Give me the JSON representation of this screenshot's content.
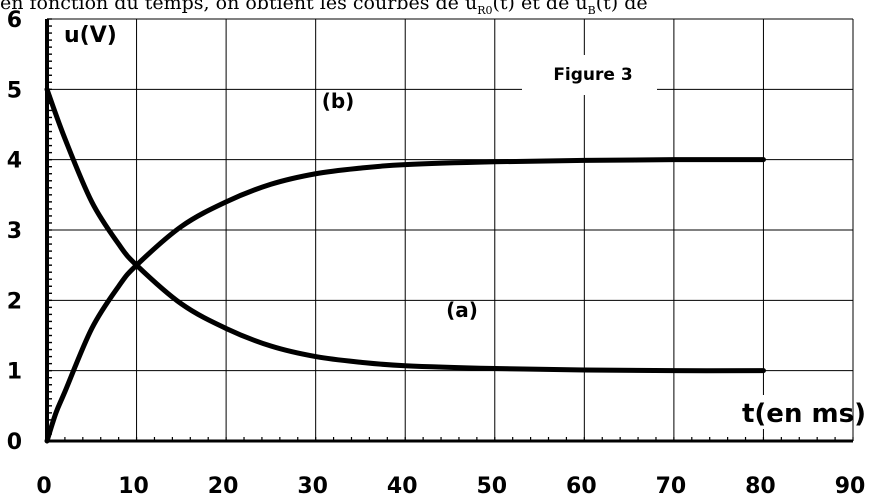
{
  "header_text": {
    "prefix": "en fonction du temps, on obtient les courbes de u",
    "sub1": "R0",
    "mid": "(t) et de u",
    "sub2": "B",
    "suffix": "(t) de"
  },
  "chart_data": {
    "type": "line",
    "title": "Figure 3",
    "xlabel": "t(en ms)",
    "ylabel": "u(V)",
    "xlim": [
      0,
      90
    ],
    "ylim": [
      0,
      6
    ],
    "xticks": [
      0,
      10,
      20,
      30,
      40,
      50,
      60,
      70,
      80,
      90
    ],
    "yticks": [
      0,
      1,
      2,
      3,
      4,
      5,
      6
    ],
    "grid": true,
    "series": [
      {
        "name": "(a)",
        "x": [
          0,
          2,
          5,
          8,
          10,
          15,
          20,
          25,
          30,
          35,
          40,
          50,
          60,
          70,
          80
        ],
        "y": [
          5,
          4.3,
          3.4,
          2.8,
          2.5,
          1.95,
          1.6,
          1.35,
          1.2,
          1.12,
          1.07,
          1.03,
          1.01,
          1.0,
          1.0
        ]
      },
      {
        "name": "(b)",
        "x": [
          0,
          1,
          2,
          5,
          8,
          10,
          15,
          20,
          25,
          30,
          35,
          40,
          50,
          60,
          70,
          80
        ],
        "y": [
          0,
          0.4,
          0.7,
          1.6,
          2.2,
          2.5,
          3.05,
          3.4,
          3.65,
          3.8,
          3.88,
          3.93,
          3.97,
          3.99,
          4.0,
          4.0
        ]
      }
    ],
    "annotations": [
      "(a)",
      "(b)"
    ]
  }
}
